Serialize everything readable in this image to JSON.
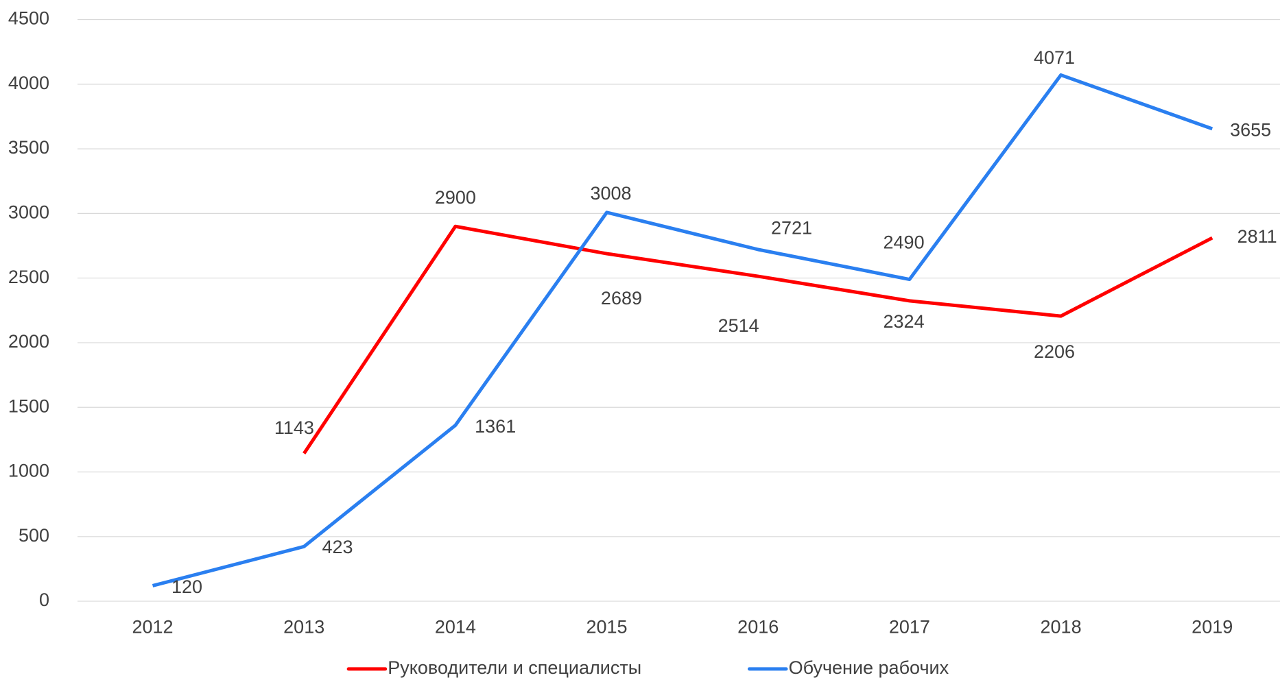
{
  "chart_data": {
    "type": "line",
    "categories": [
      "2012",
      "2013",
      "2014",
      "2015",
      "2016",
      "2017",
      "2018",
      "2019"
    ],
    "series": [
      {
        "name": "Руководители и специалисты",
        "color": "#ff0000",
        "values": [
          null,
          1143,
          2900,
          2689,
          2514,
          2324,
          2206,
          2811
        ]
      },
      {
        "name": "Обучение рабочих",
        "color": "#2a7ff0",
        "values": [
          120,
          423,
          1361,
          3008,
          2721,
          2490,
          4071,
          3655
        ]
      }
    ],
    "ylim": [
      0,
      4500
    ],
    "yticks": [
      0,
      500,
      1000,
      1500,
      2000,
      2500,
      3000,
      3500,
      4000,
      4500
    ],
    "grid": true,
    "legend": "bottom"
  }
}
